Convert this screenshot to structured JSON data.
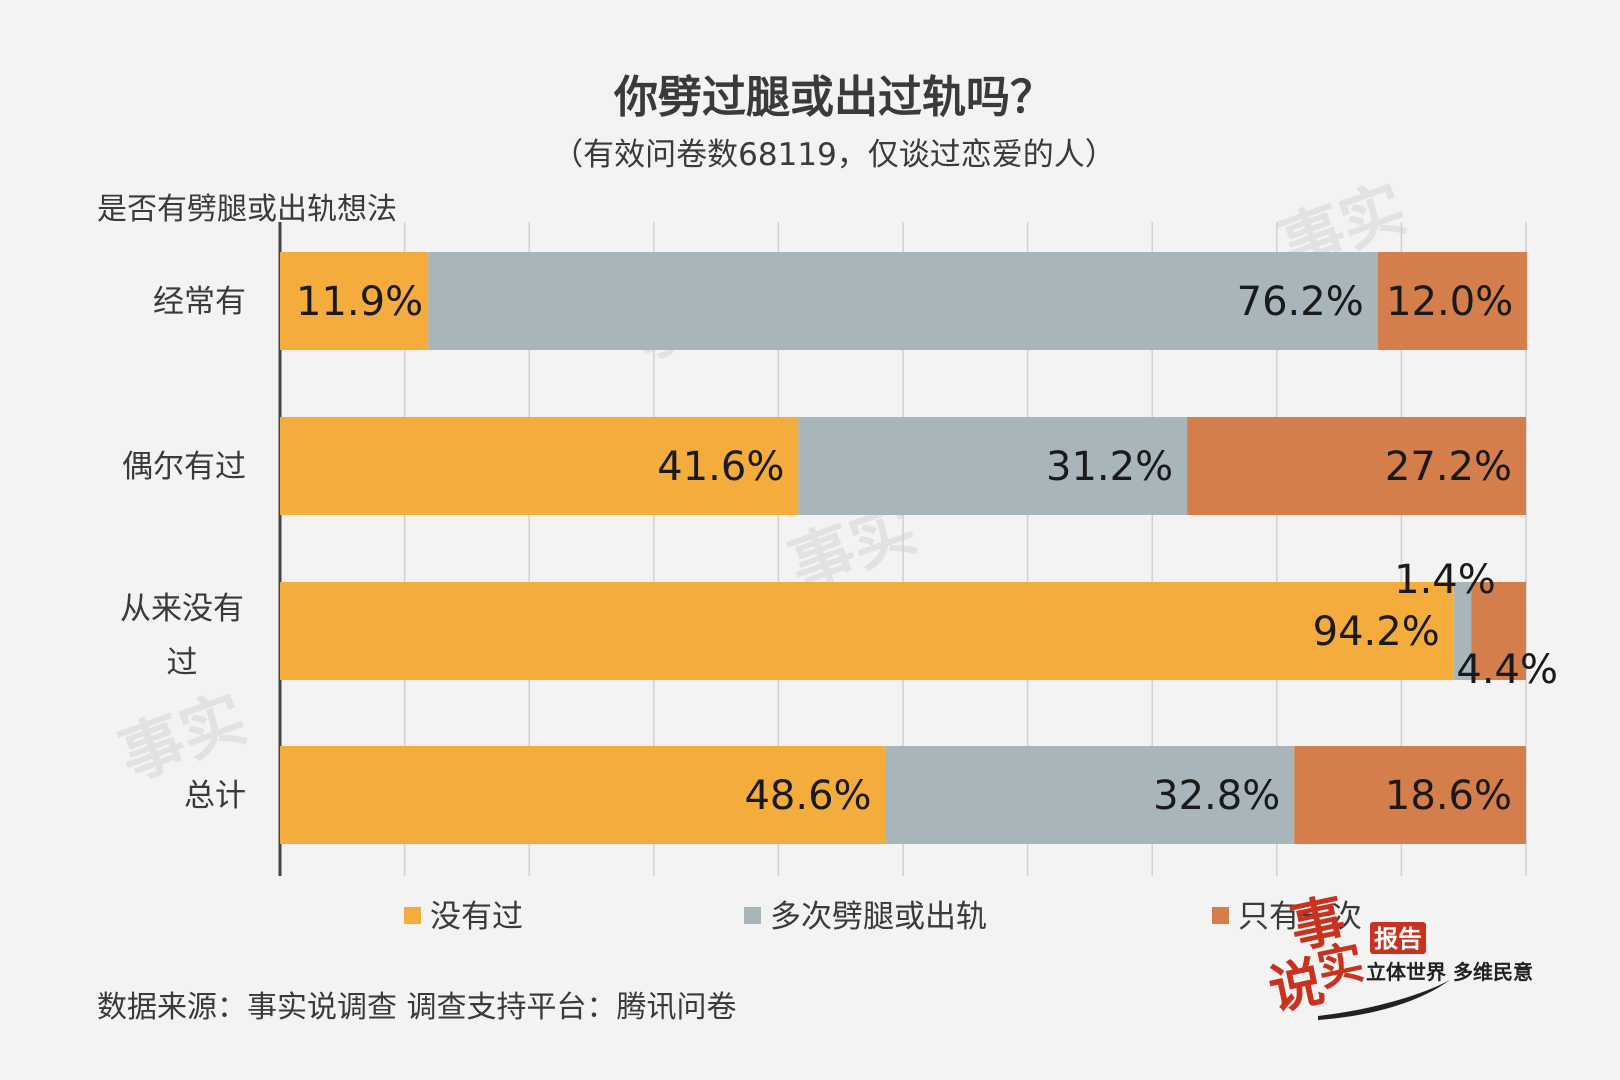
{
  "header": {
    "title": "你劈过腿或出过轨吗？",
    "subtitle": "（有效问卷数68119，仅谈过恋爱的人）"
  },
  "footer": {
    "source": "数据来源：事实说调查  调查支持平台：腾讯问卷"
  },
  "logo": {
    "char1": "事",
    "char2": "说",
    "char3": "实",
    "badge": "报告",
    "tagline": "立体世界 多维民意"
  },
  "colors": {
    "series0": "#f4ac3d",
    "series1": "#a8b6bb",
    "series2": "#d37e4b",
    "axis": "#444444",
    "grid": "#d0d0d0"
  },
  "chart_data": {
    "type": "bar",
    "orientation": "horizontal",
    "stacked": true,
    "percent_stacked": true,
    "title": "你劈过腿或出过轨吗？",
    "subtitle": "（有效问卷数68119，仅谈过恋爱的人）",
    "ylabel": "是否有劈腿或出轨想法",
    "xlabel": "",
    "categories": [
      "经常有",
      "偶尔有过",
      "从来没有过",
      "总计"
    ],
    "series": [
      {
        "name": "没有过",
        "values": [
          11.9,
          41.6,
          94.2,
          48.6
        ],
        "labels": [
          "11.9%",
          "41.6%",
          "94.2%",
          "48.6%"
        ]
      },
      {
        "name": "多次劈腿或出轨",
        "values": [
          76.2,
          31.2,
          1.4,
          32.8
        ],
        "labels": [
          "76.2%",
          "31.2%",
          "1.4%",
          "32.8%"
        ]
      },
      {
        "name": "只有一次",
        "values": [
          12.0,
          27.2,
          4.4,
          18.6
        ],
        "labels": [
          "12.0%",
          "27.2%",
          "4.4%",
          "18.6%"
        ]
      }
    ],
    "xlim": [
      0,
      100
    ],
    "grid": true,
    "legend_position": "bottom"
  }
}
